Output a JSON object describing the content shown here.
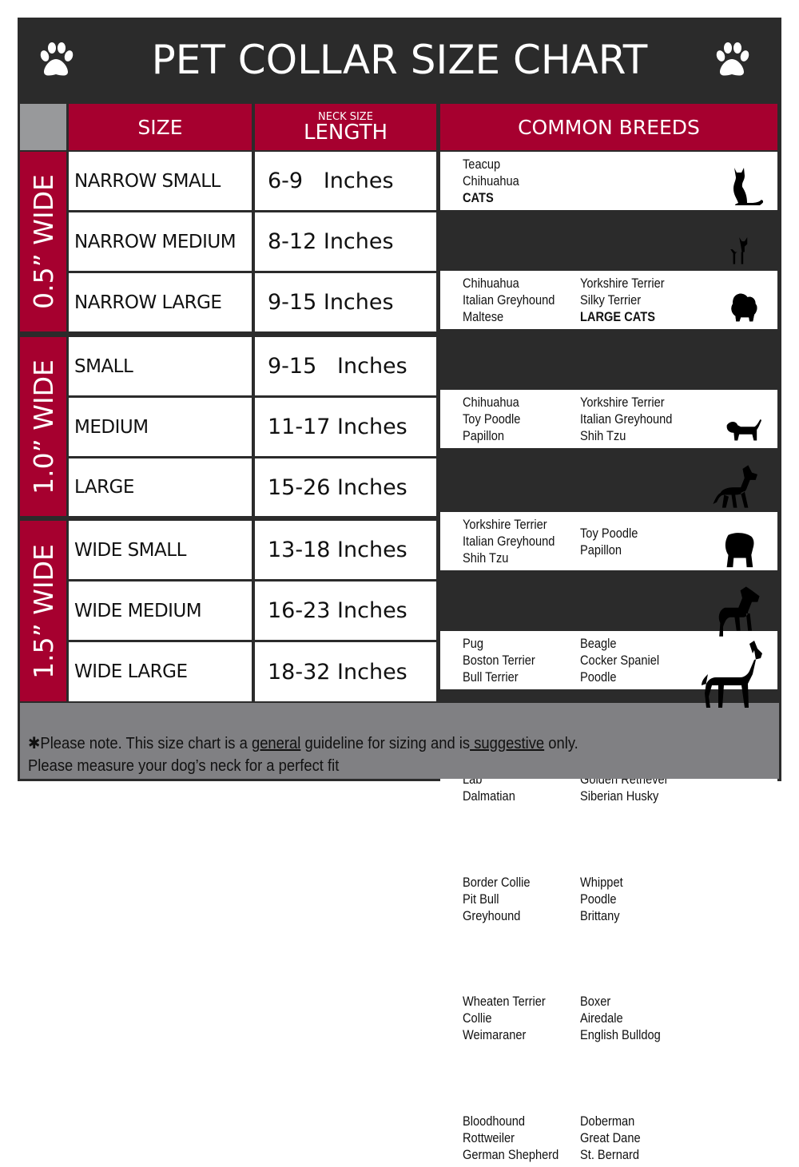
{
  "title": "PET COLLAR SIZE CHART",
  "icons": {
    "left": "paw-print-icon",
    "right": "paw-print-icon"
  },
  "colors": {
    "frame": "#2b2b2b",
    "accent": "#a6002f",
    "footer": "#808083",
    "corner": "#98999b"
  },
  "headers": {
    "size": "SIZE",
    "length_small": "NECK SIZE",
    "length": "LENGTH",
    "breeds": "COMMON BREEDS"
  },
  "groups": [
    {
      "label": "0.5” WIDE"
    },
    {
      "label": "1.0” WIDE"
    },
    {
      "label": "1.5” WIDE"
    }
  ],
  "rows": [
    {
      "size": "NARROW SMALL",
      "length": "6-9   Inches",
      "breeds1": [
        "Teacup",
        "Chihuahua",
        "CATS"
      ],
      "breeds2": [],
      "icon": "cat-icon"
    },
    {
      "size": "NARROW MEDIUM",
      "length": "8-12 Inches",
      "breeds1": [
        "Chihuahua",
        "Italian Greyhound",
        "Maltese"
      ],
      "breeds2": [
        "Yorkshire Terrier",
        "Silky Terrier",
        "LARGE CATS"
      ],
      "icon": "chihuahua-icon"
    },
    {
      "size": "NARROW LARGE",
      "length": "9-15 Inches",
      "breeds1": [
        "Chihuahua",
        "Toy Poodle",
        "Papillon"
      ],
      "breeds2": [
        "Yorkshire Terrier",
        "Italian Greyhound",
        "Shih Tzu"
      ],
      "icon": "pomeranian-icon"
    },
    {
      "size": "SMALL",
      "length": "9-15   Inches",
      "breeds1": [
        "Yorkshire Terrier",
        "Italian Greyhound",
        "Shih Tzu"
      ],
      "breeds2": [
        "Toy Poodle",
        "Papillon"
      ],
      "icon": "pomeranian-icon"
    },
    {
      "size": "MEDIUM",
      "length": "11-17 Inches",
      "breeds1": [
        "Pug",
        "Boston Terrier",
        "Bull Terrier"
      ],
      "breeds2": [
        "Beagle",
        "Cocker Spaniel",
        "Poodle"
      ],
      "icon": "spaniel-icon"
    },
    {
      "size": "LARGE",
      "length": "15-26 Inches",
      "breeds1": [
        "Collie",
        "Lab",
        "Dalmatian"
      ],
      "breeds2": [
        "Weimaraner",
        "Golden Retriever",
        "Siberian Husky"
      ],
      "icon": "shepherd-dog-icon"
    },
    {
      "size": "WIDE SMALL",
      "length": "13-18 Inches",
      "breeds1": [
        "Border Collie",
        "Pit Bull",
        "Greyhound"
      ],
      "breeds2": [
        "Whippet",
        "Poodle",
        "Brittany"
      ],
      "icon": "bulldog-icon"
    },
    {
      "size": "WIDE MEDIUM",
      "length": "16-23 Inches",
      "breeds1": [
        "Wheaten Terrier",
        "Collie",
        "Weimaraner"
      ],
      "breeds2": [
        "Boxer",
        "Airedale",
        "English Bulldog"
      ],
      "icon": "pitbull-icon"
    },
    {
      "size": "WIDE LARGE",
      "length": "18-32 Inches",
      "breeds1": [
        "Bloodhound",
        "Rottweiler",
        "German Shepherd"
      ],
      "breeds2": [
        "Doberman",
        "Great Dane",
        "St. Bernard"
      ],
      "icon": "doberman-icon"
    }
  ],
  "footer": {
    "line1_a": "✱Please note. This size chart is a ",
    "line1_b": "general",
    "line1_c": " guideline for sizing and is",
    "line1_d": " suggestive",
    "line1_e": " only.",
    "line2": "Please measure your dog’s neck for a perfect fit"
  }
}
